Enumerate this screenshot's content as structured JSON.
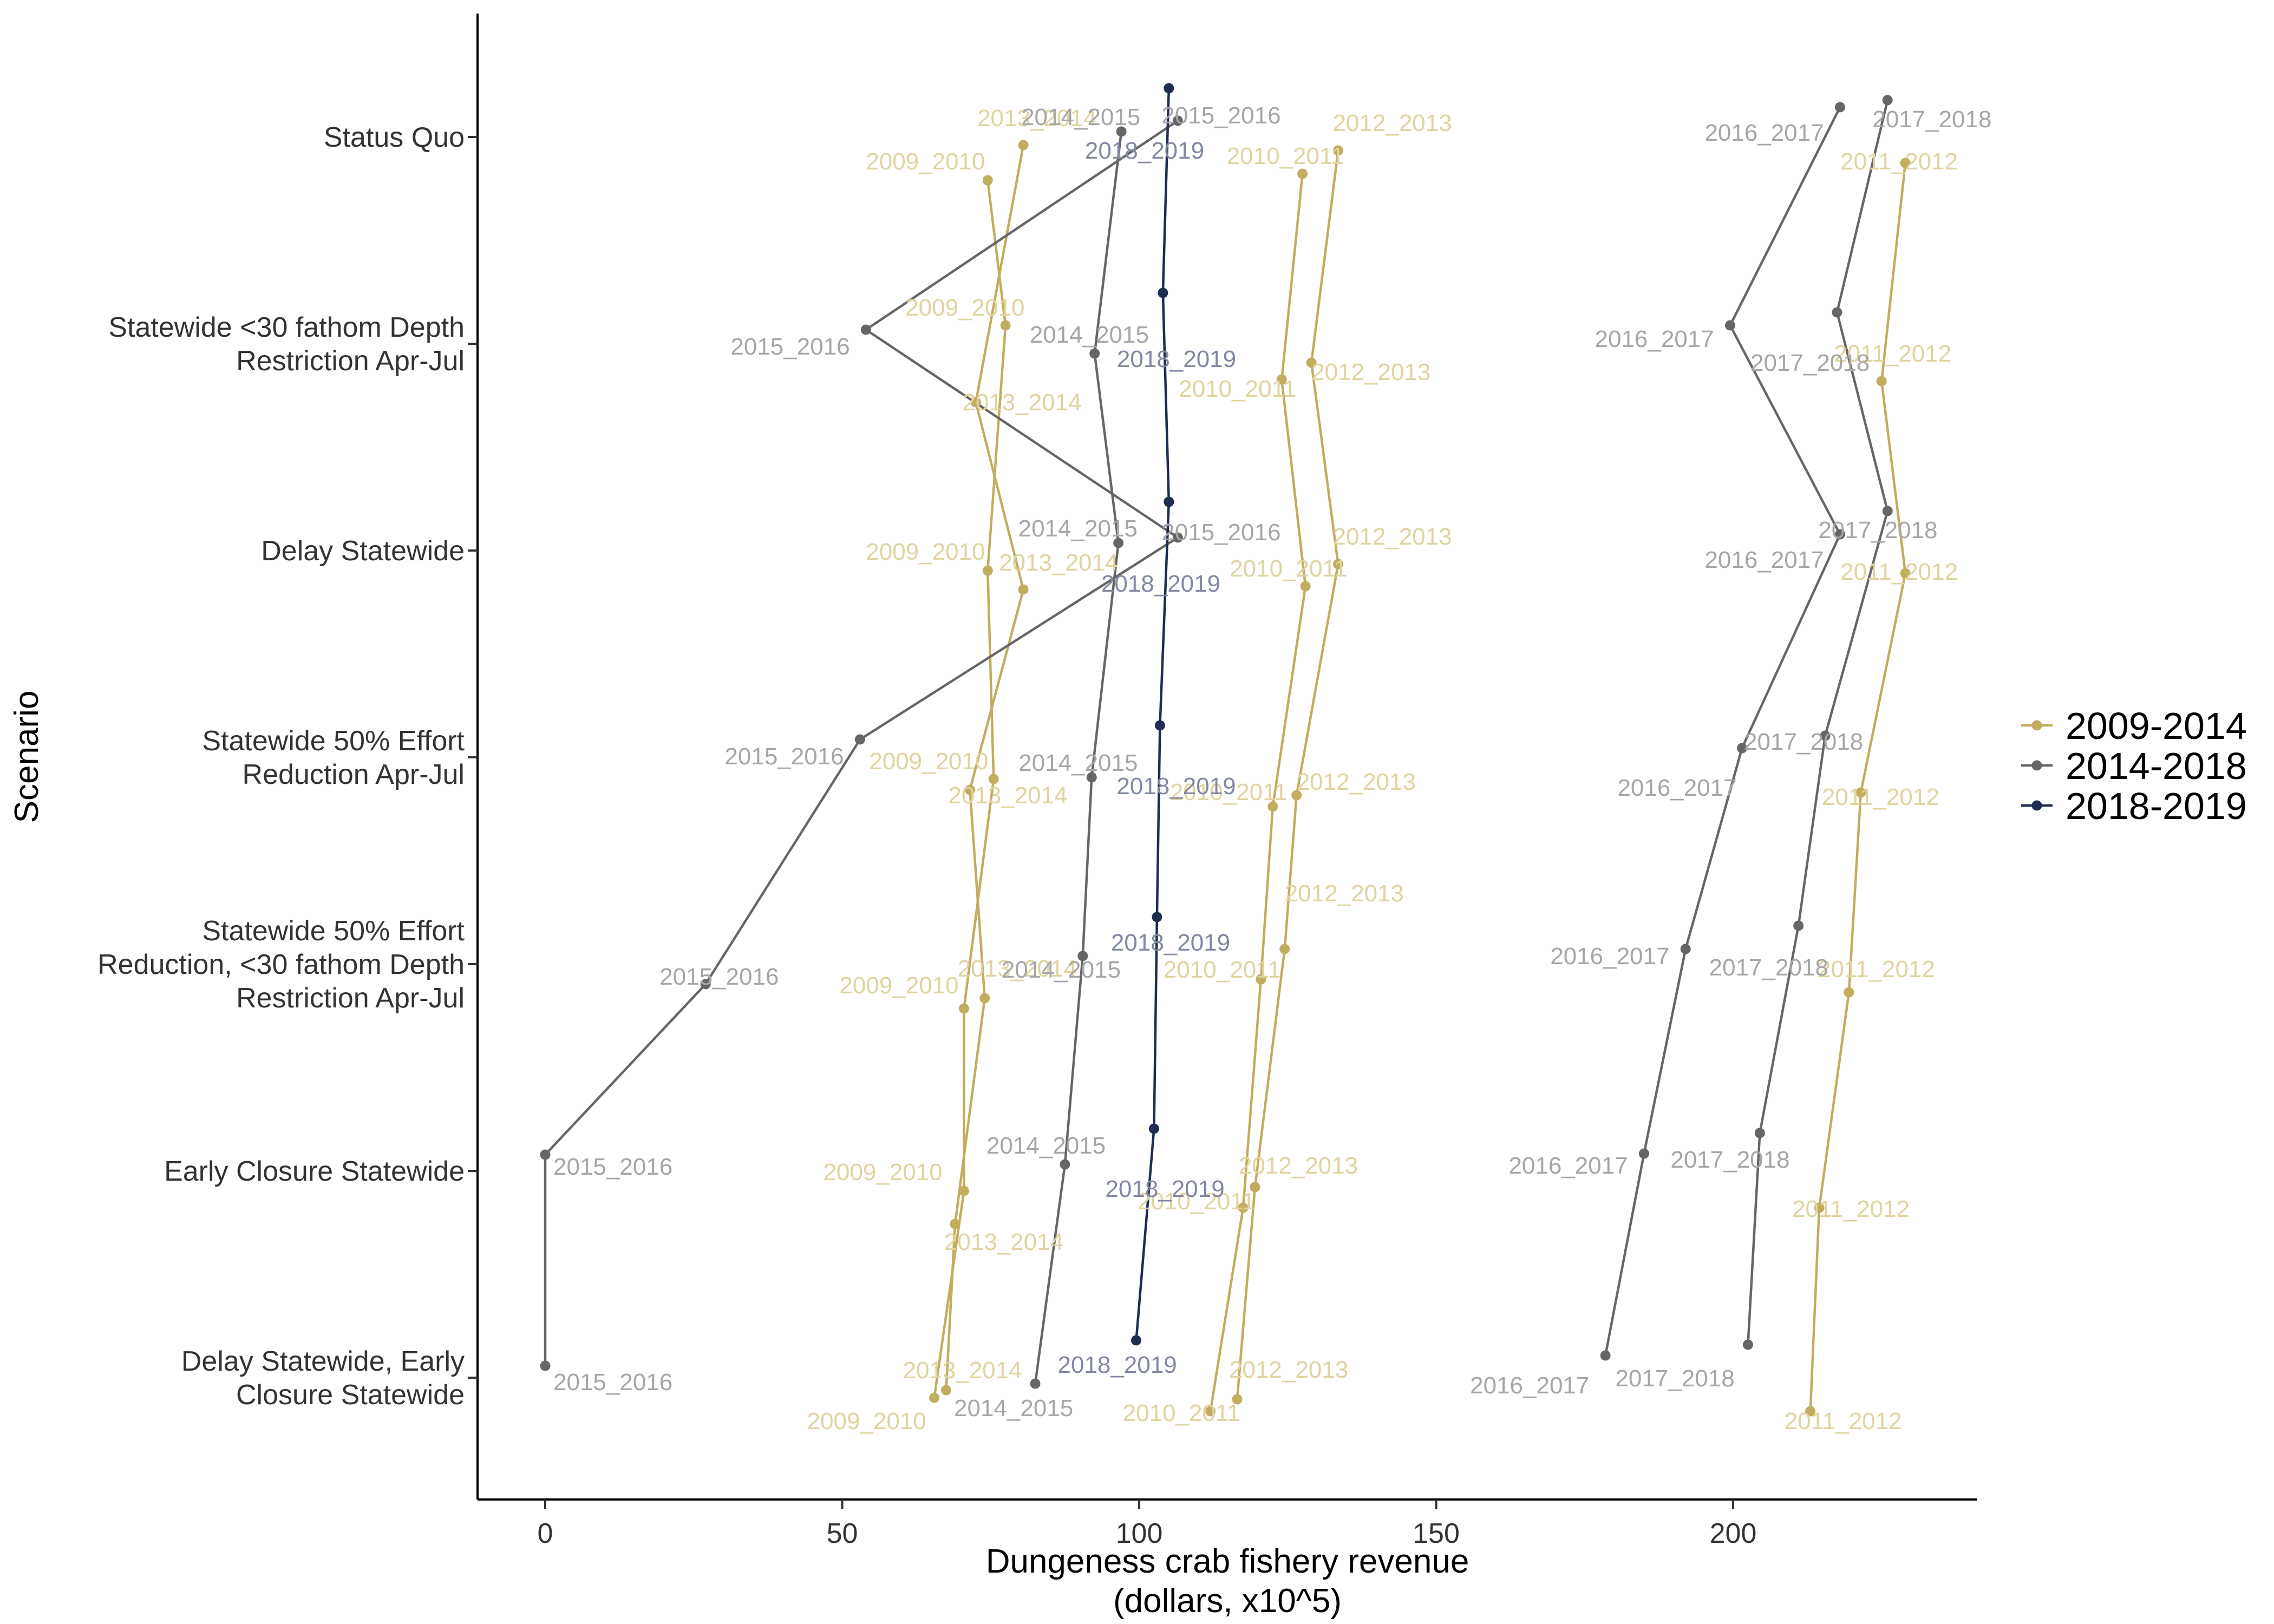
{
  "chart_data": {
    "type": "line",
    "title": "",
    "xlabel_lines": [
      "Dungeness crab fishery revenue",
      "(dollars, x10^5)"
    ],
    "ylabel": "Scenario",
    "xlim": [
      0,
      240
    ],
    "x_ticks": [
      0,
      50,
      100,
      150,
      200
    ],
    "grid": false,
    "legend_position": "right",
    "categories": [
      {
        "lines": [
          "Status Quo"
        ]
      },
      {
        "lines": [
          "Statewide <30 fathom Depth",
          "Restriction Apr-Jul"
        ]
      },
      {
        "lines": [
          "Delay Statewide"
        ]
      },
      {
        "lines": [
          "Statewide 50% Effort",
          "Reduction Apr-Jul"
        ]
      },
      {
        "lines": [
          "Statewide 50% Effort",
          "Reduction, <30 fathom Depth",
          "Restriction Apr-Jul"
        ]
      },
      {
        "lines": [
          "Early Closure Statewide"
        ]
      },
      {
        "lines": [
          "Delay Statewide, Early",
          "Closure Statewide"
        ]
      }
    ],
    "groups": [
      {
        "name": "2009-2014",
        "color": "#c2ad5e",
        "label_color": "#e0d39f"
      },
      {
        "name": "2014-2018",
        "color": "#666666",
        "label_color": "#a6a6a6"
      },
      {
        "name": "2018-2019",
        "color": "#1f2d52",
        "label_color": "#8088a3"
      }
    ],
    "series": [
      {
        "name": "2009_2010",
        "group": "2009-2014",
        "values": [
          74.5,
          77.5,
          74.5,
          75.5,
          70.5,
          70.5,
          65.5
        ]
      },
      {
        "name": "2010_2011",
        "group": "2009-2014",
        "values": [
          127.5,
          124,
          128,
          122.5,
          120.5,
          117.5,
          112
        ]
      },
      {
        "name": "2011_2012",
        "group": "2009-2014",
        "values": [
          229,
          225,
          229,
          221.5,
          219.5,
          214.5,
          213
        ]
      },
      {
        "name": "2012_2013",
        "group": "2009-2014",
        "values": [
          133.5,
          129,
          133.5,
          126.5,
          124.5,
          119.5,
          116.5
        ]
      },
      {
        "name": "2013_2014",
        "group": "2009-2014",
        "values": [
          80.5,
          72.5,
          80.5,
          71.5,
          74,
          69,
          67.5
        ]
      },
      {
        "name": "2014_2015",
        "group": "2014-2018",
        "values": [
          97,
          92.5,
          96.5,
          92,
          90.5,
          87.5,
          82.5
        ]
      },
      {
        "name": "2015_2016",
        "group": "2014-2018",
        "values": [
          106.5,
          54,
          106.5,
          53,
          27,
          0,
          0
        ]
      },
      {
        "name": "2016_2017",
        "group": "2014-2018",
        "values": [
          218,
          199.5,
          218,
          201.5,
          192,
          185,
          178.5
        ]
      },
      {
        "name": "2017_2018",
        "group": "2014-2018",
        "values": [
          226,
          217.5,
          226,
          215.5,
          211,
          204.5,
          202.5
        ]
      },
      {
        "name": "2018_2019",
        "group": "2018-2019",
        "values": [
          105,
          104,
          105,
          103.5,
          103,
          102.5,
          99.5
        ]
      }
    ]
  }
}
